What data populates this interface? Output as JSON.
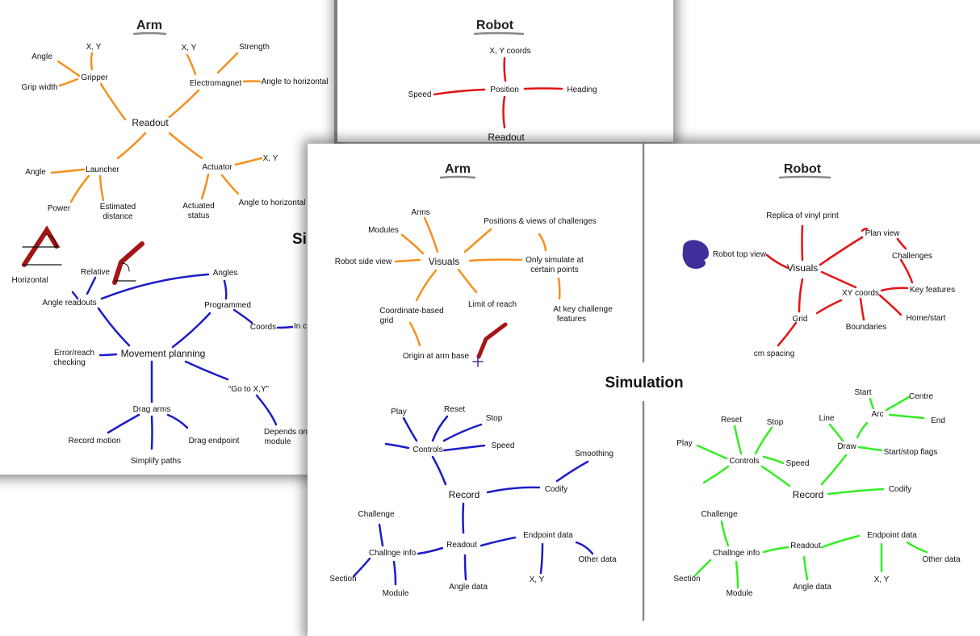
{
  "sheet_back_left": {
    "title": "Arm",
    "partial_center_text": "Si",
    "readout": [
      "Readout",
      "Gripper",
      "X, Y",
      "Angle",
      "Grip width",
      "Electromagnet",
      "X, Y",
      "Strength",
      "Angle to horizontal",
      "Launcher",
      "Angle",
      "Power",
      "Estimated",
      "distance",
      "Actuator",
      "X, Y",
      "Actuated",
      "status",
      "Angle to horizontal"
    ],
    "planning": [
      "Horizontal",
      "Relative",
      "Angle readouts",
      "Angles",
      "Programmed",
      "Coords",
      "In c",
      "Error/reach",
      "checking",
      "Movement planning",
      "“Go to X,Y”",
      "Depends on",
      "module",
      "Drag arms",
      "Record motion",
      "Simplify paths",
      "Drag endpoint"
    ]
  },
  "sheet_back_right": {
    "title": "Robot",
    "labels": [
      "X, Y coords",
      "Position",
      "Speed",
      "Heading",
      "Readout"
    ]
  },
  "sheet_front": {
    "center_title": "Simulation",
    "arm": {
      "title": "Arm",
      "visuals": [
        "Visuals",
        "Arms",
        "Modules",
        "Positions & views of challenges",
        "Robot side view",
        "Only simulate at",
        "certain points",
        "Coordinate-based",
        "grid",
        "Limit of reach",
        "At key challenge",
        "features",
        "Origin at arm base"
      ],
      "record": [
        "Record",
        "Controls",
        "Play",
        "Reset",
        "Stop",
        "Speed",
        "Smoothing",
        "Codify",
        "Challenge",
        "Challnge info",
        "Section",
        "Module",
        "Readout",
        "Angle data",
        "Endpoint data",
        "Other data",
        "X, Y"
      ]
    },
    "robot": {
      "title": "Robot",
      "visuals": [
        "Visuals",
        "Replica of vinyl print",
        "Plan view",
        "Robot top view",
        "Challenges",
        "Key features",
        "XY coords",
        "Home/start",
        "Boundaries",
        "Grid",
        "cm spacing"
      ],
      "record": [
        "Record",
        "Controls",
        "Reset",
        "Stop",
        "Play",
        "Speed",
        "Line",
        "Start",
        "Centre",
        "Arc",
        "End",
        "Draw",
        "Start/stop flags",
        "Codify",
        "Challenge",
        "Challnge info",
        "Section",
        "Module",
        "Readout",
        "Angle data",
        "Endpoint data",
        "Other data",
        "X, Y"
      ]
    }
  },
  "colors": {
    "orange": "#f5901e",
    "red": "#e31414",
    "blue": "#1c1cc8",
    "green": "#33ee22",
    "arm_drawing": "#a31616",
    "robot_blob": "#3f2f9a"
  }
}
